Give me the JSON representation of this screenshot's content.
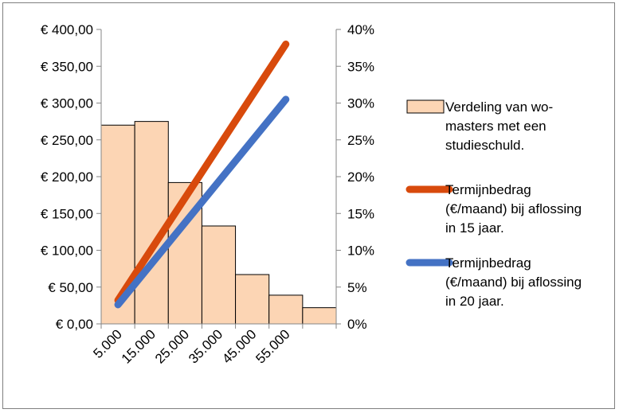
{
  "chart_data": {
    "type": "bar+line",
    "title": "",
    "categories": [
      "5.000",
      "15.000",
      "25.000",
      "35.000",
      "45.000",
      "55.000",
      ""
    ],
    "y_left": {
      "ticks": [
        "€ 0,00",
        "€ 50,00",
        "€ 100,00",
        "€ 150,00",
        "€ 200,00",
        "€ 250,00",
        "€ 300,00",
        "€ 350,00",
        "€ 400,00"
      ],
      "range": [
        0,
        400
      ]
    },
    "y_right": {
      "ticks": [
        "0%",
        "5%",
        "10%",
        "15%",
        "20%",
        "25%",
        "30%",
        "35%",
        "40%"
      ],
      "range": [
        0,
        0.4
      ]
    },
    "series": [
      {
        "name": "Verdeling van wo-masters met een studieschuld.",
        "kind": "bar",
        "axis": "right",
        "color": "#fcd5b4",
        "values": [
          0.27,
          0.275,
          0.192,
          0.133,
          0.067,
          0.039,
          0.022
        ]
      },
      {
        "name": "Termijnbedrag (€/maand) bij aflossing in 15 jaar.",
        "kind": "line",
        "axis": "left",
        "color": "#d84a0c",
        "x": [
          5000,
          55000
        ],
        "values": [
          32,
          380
        ]
      },
      {
        "name": "Termijnbedrag (€/maand) bij aflossing in 20 jaar.",
        "kind": "line",
        "axis": "left",
        "color": "#4472c4",
        "x": [
          5000,
          55000
        ],
        "values": [
          26,
          305
        ]
      }
    ],
    "legend": {
      "placement": "right",
      "entries": [
        {
          "lines": [
            "Verdeling van wo-",
            "masters met een",
            "studieschuld."
          ]
        },
        {
          "lines": [
            "Termijnbedrag",
            "(€/maand) bij aflossing",
            "in 15 jaar."
          ]
        },
        {
          "lines": [
            "Termijnbedrag",
            "(€/maand) bij aflossing",
            "in 20 jaar."
          ]
        }
      ]
    }
  }
}
